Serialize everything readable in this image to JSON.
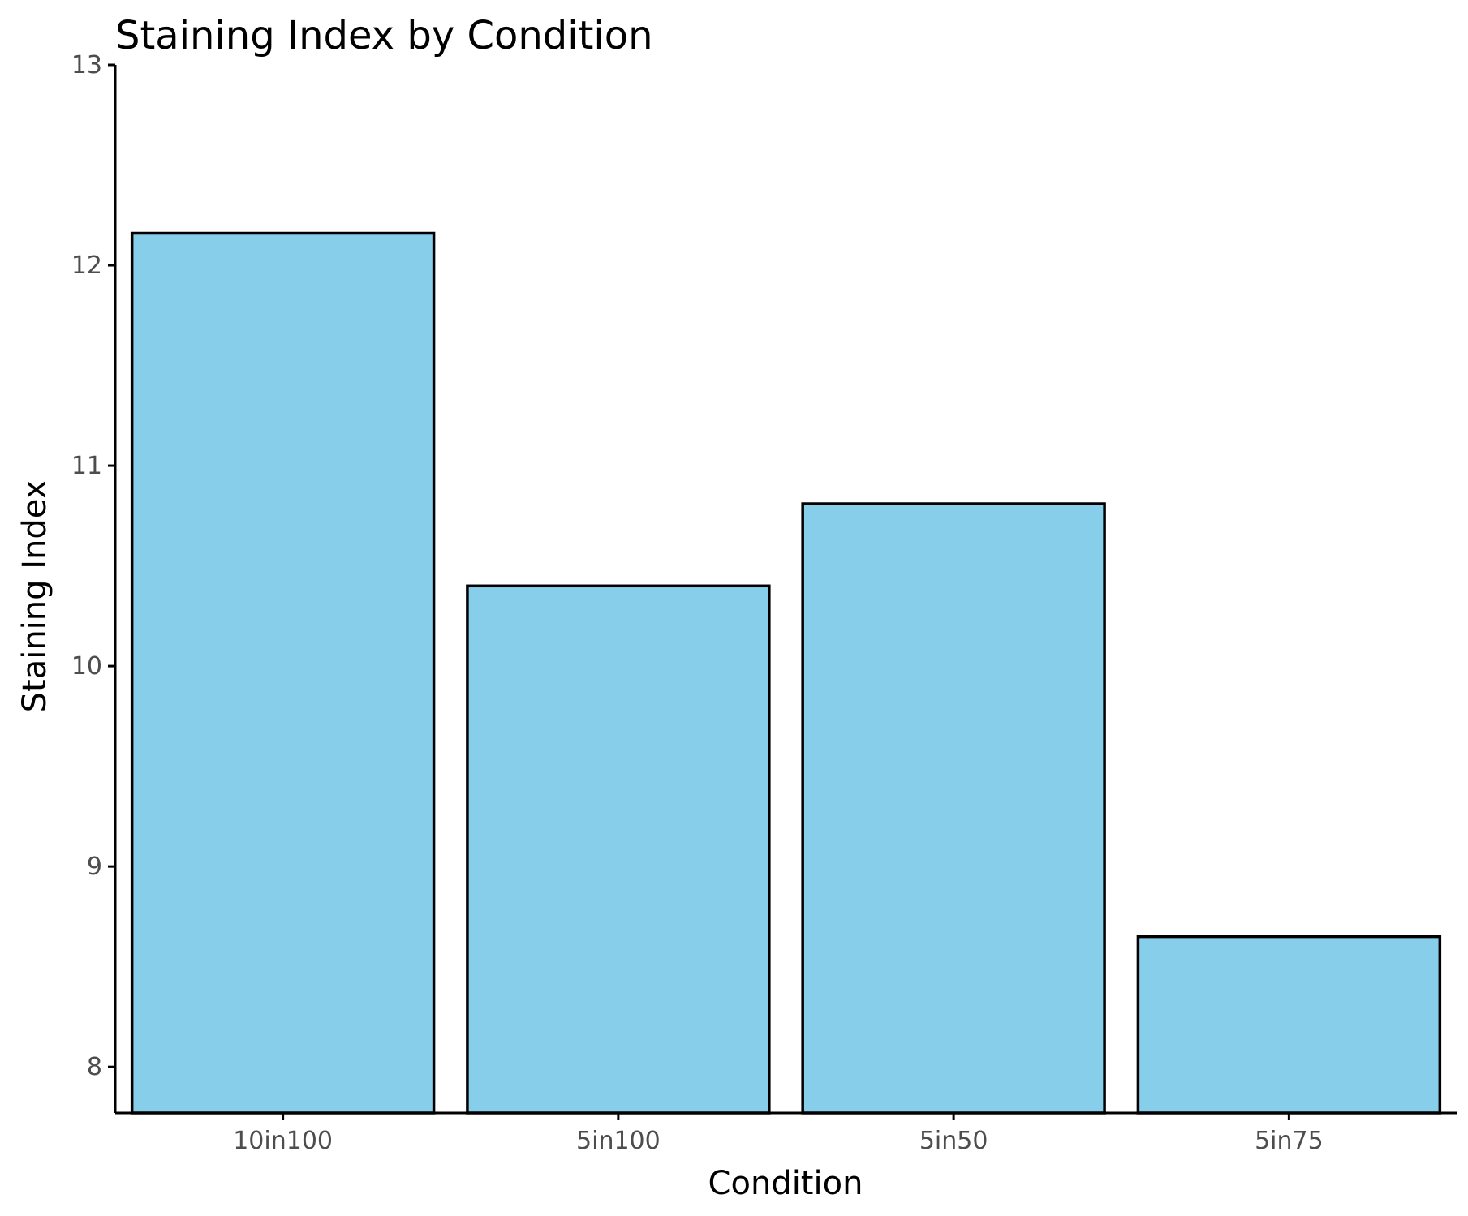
{
  "chart_data": {
    "type": "bar",
    "title": "Staining Index by Condition",
    "xlabel": "Condition",
    "ylabel": "Staining Index",
    "categories": [
      "10in100",
      "5in100",
      "5in50",
      "5in75"
    ],
    "values": [
      12.16,
      10.4,
      10.81,
      8.65
    ],
    "ylim": [
      7.77,
      13
    ],
    "yticks": [
      8,
      9,
      10,
      11,
      12,
      13
    ],
    "bar_color": "#87CEEB",
    "bar_edge_color": "#000000",
    "grid": false,
    "legend": "none"
  }
}
